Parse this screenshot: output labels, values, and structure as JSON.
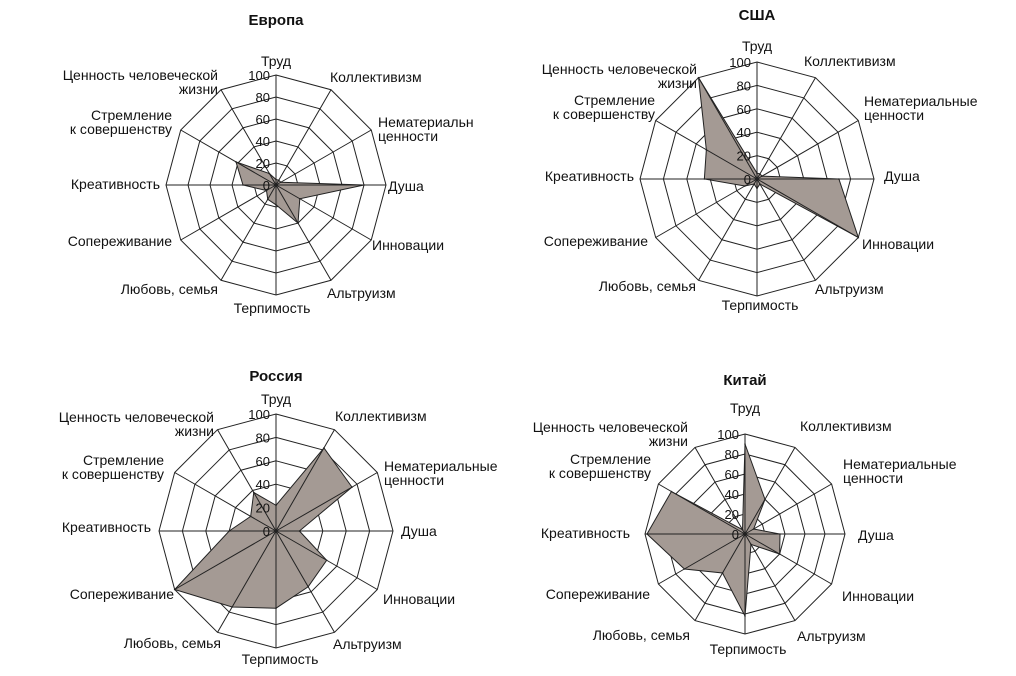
{
  "chart_data": [
    {
      "type": "radar",
      "title": "Европа",
      "categories": [
        "Труд",
        "Коллективизм",
        "Нематериальн ценности",
        "Душа",
        "Инновации",
        "Альтруизм",
        "Терпимость",
        "Любовь, семья",
        "Сопереживание",
        "Креативность",
        "Стремление к совершенству",
        "Ценность человеческой жизни"
      ],
      "values": [
        5,
        5,
        5,
        80,
        25,
        40,
        18,
        15,
        10,
        30,
        42,
        12
      ],
      "rlim": [
        0,
        100
      ],
      "ticks": [
        "0",
        "20",
        "40",
        "60",
        "80",
        "100"
      ]
    },
    {
      "type": "radar",
      "title": "США",
      "categories": [
        "Труд",
        "Коллективизм",
        "Нематериальные ценности",
        "Душа",
        "Инновации",
        "Альтруизм",
        "Терпимость",
        "Любовь, семья",
        "Сопереживание",
        "Креативность",
        "Стремление к совершенству",
        "Ценность человеческой жизни"
      ],
      "values": [
        5,
        5,
        5,
        70,
        100,
        5,
        8,
        5,
        12,
        45,
        50,
        100
      ],
      "rlim": [
        0,
        100
      ],
      "ticks": [
        "0",
        "20",
        "40",
        "60",
        "80",
        "100"
      ]
    },
    {
      "type": "radar",
      "title": "Россия",
      "categories": [
        "Труд",
        "Коллективизм",
        "Нематериальные ценности",
        "Душа",
        "Инновации",
        "Альтруизм",
        "Терпимость",
        "Любовь, семья",
        "Сопереживание",
        "Креативность",
        "Стремление к совершенству",
        "Ценность человеческой жизни"
      ],
      "values": [
        22,
        82,
        75,
        20,
        50,
        55,
        66,
        75,
        100,
        40,
        25,
        38
      ],
      "rlim": [
        0,
        100
      ],
      "ticks": [
        "0",
        "20",
        "40",
        "60",
        "80",
        "100"
      ]
    },
    {
      "type": "radar",
      "title": "Китай",
      "categories": [
        "Труд",
        "Коллективизм",
        "Нематериальные ценности",
        "Душа",
        "Инновации",
        "Альтруизм",
        "Терпимость",
        "Любовь, семья",
        "Сопереживание",
        "Креативность",
        "Стремление к совершенству",
        "Ценность человеческой жизни"
      ],
      "values": [
        90,
        40,
        10,
        35,
        40,
        12,
        82,
        45,
        70,
        98,
        85,
        5
      ],
      "rlim": [
        0,
        100
      ],
      "ticks": [
        "0",
        "20",
        "40",
        "60",
        "80",
        "100"
      ]
    }
  ]
}
